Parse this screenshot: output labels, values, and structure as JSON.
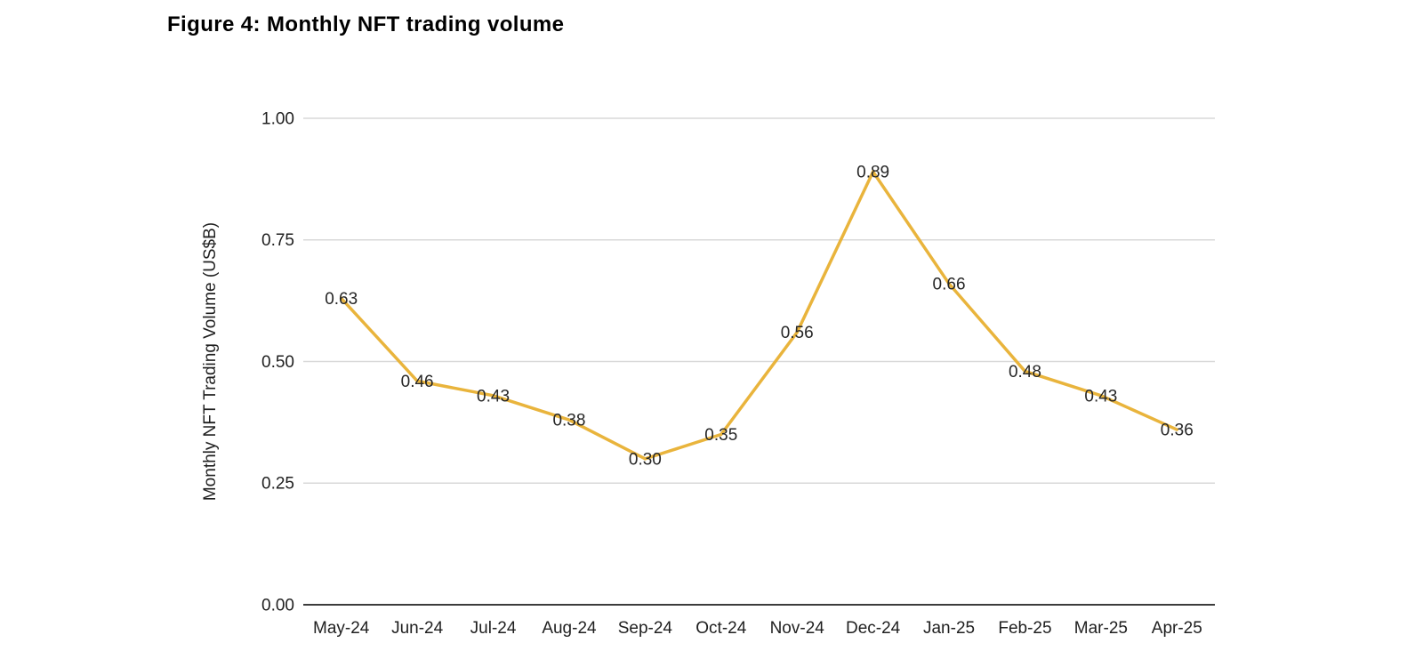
{
  "title": "Figure 4: Monthly NFT trading volume",
  "chart_data": {
    "type": "line",
    "title": "Figure 4: Monthly NFT trading volume",
    "categories": [
      "May-24",
      "Jun-24",
      "Jul-24",
      "Aug-24",
      "Sep-24",
      "Oct-24",
      "Nov-24",
      "Dec-24",
      "Jan-25",
      "Feb-25",
      "Mar-25",
      "Apr-25"
    ],
    "series": [
      {
        "name": "Monthly NFT Trading Volume (US$B)",
        "values": [
          0.63,
          0.46,
          0.43,
          0.38,
          0.3,
          0.35,
          0.56,
          0.89,
          0.66,
          0.48,
          0.43,
          0.36
        ],
        "data_labels": [
          "0.63",
          "0.46",
          "0.43",
          "0.38",
          "0.30",
          "0.35",
          "0.56",
          "0.89",
          "0.66",
          "0.48",
          "0.43",
          "0.36"
        ],
        "color": "#E9B43C"
      }
    ],
    "xlabel": "",
    "ylabel": "Monthly NFT Trading Volume (US$B)",
    "ylim": [
      0,
      1
    ],
    "yticks": [
      {
        "value": 0.0,
        "label": "0.00"
      },
      {
        "value": 0.25,
        "label": "0.25"
      },
      {
        "value": 0.5,
        "label": "0.50"
      },
      {
        "value": 0.75,
        "label": "0.75"
      },
      {
        "value": 1.0,
        "label": "1.00"
      }
    ],
    "grid": "horizontal",
    "legend_position": "none"
  },
  "colors": {
    "line": "#E9B43C",
    "gridline": "#D9D9D9",
    "axis_line": "#3C3C3C",
    "tick_text": "#1F1F1F",
    "data_label_text": "#262626",
    "title_text": "#000000",
    "background": "#FFFFFF"
  }
}
